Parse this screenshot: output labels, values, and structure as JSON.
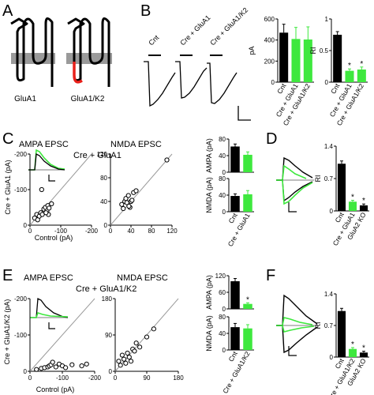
{
  "panels": {
    "A": "A",
    "B": "B",
    "C": "C",
    "D": "D",
    "E": "E",
    "F": "F"
  },
  "panelA": {
    "glua1_label": "GluA1",
    "glua1k2_label": "GluA1/K2"
  },
  "panelB": {
    "trace_labels": [
      "Cnt",
      "Cre + GluA1",
      "Cre + GluA1/K2"
    ],
    "pA_axis": "pA",
    "RI_axis": "RI"
  },
  "panelC": {
    "ampa_title": "AMPA EPSC",
    "nmda_title": "NMDA EPSC",
    "condition": "Cre + GluA1",
    "y_axis_label": "Cre + GluA1 (pA)",
    "x_axis_label": "Control (pA)",
    "ampa_bar_axis": "AMPA (pA)",
    "nmda_bar_axis": "NMDA (pA)"
  },
  "panelD": {
    "RI_axis": "RI"
  },
  "panelE": {
    "ampa_title": "AMPA EPSC",
    "nmda_title": "NMDA EPSC",
    "condition": "Cre + GluA1/K2",
    "y_axis_label": "Cre + GluA1/K2 (pA)",
    "x_axis_label": "Control (pA)",
    "ampa_bar_axis": "AMPA (pA)",
    "nmda_bar_axis": "NMDA (pA)"
  },
  "panelF": {
    "RI_axis": "RI"
  },
  "colors": {
    "control": "#000000",
    "green": "#3ee83e",
    "red": "#e8201a",
    "membrane": "#9a9a9a"
  },
  "chart_data": [
    {
      "id": "B-pA",
      "type": "bar",
      "categories": [
        "Cnt",
        "Cre + GluA1",
        "Cre + GluA1/K2"
      ],
      "values": [
        470,
        410,
        405
      ],
      "errors": [
        80,
        110,
        120
      ],
      "ylabel": "pA",
      "ylim": [
        0,
        600
      ],
      "yticks": [
        "0",
        "200",
        "400",
        "600"
      ],
      "colors": [
        "#000000",
        "#3ee83e",
        "#3ee83e"
      ]
    },
    {
      "id": "B-RI",
      "type": "bar",
      "categories": [
        "Cnt",
        "Cre + GluA1",
        "Cre + GluA1/K2"
      ],
      "values": [
        0.75,
        0.18,
        0.2
      ],
      "errors": [
        0.05,
        0.03,
        0.04
      ],
      "ylabel": "RI",
      "ylim": [
        0,
        1
      ],
      "yticks": [
        "0",
        "0.5",
        "1"
      ],
      "colors": [
        "#000000",
        "#3ee83e",
        "#3ee83e"
      ]
    },
    {
      "id": "C-AMPA-scatter",
      "type": "scatter",
      "title": "AMPA EPSC",
      "xlabel": "Control (pA)",
      "ylabel": "Cre + GluA1 (pA)",
      "xticks": [
        "0",
        "-100",
        "-200"
      ],
      "yticks": [
        "0",
        "-100",
        "-200"
      ],
      "x": [
        -15,
        -22,
        -30,
        -35,
        -40,
        -45,
        -50,
        -55,
        -58,
        -60,
        -62,
        -70,
        -38,
        -25,
        -52
      ],
      "y": [
        -20,
        -30,
        -25,
        -35,
        -30,
        -45,
        -50,
        -40,
        -55,
        -30,
        -48,
        -60,
        -100,
        -15,
        -35
      ]
    },
    {
      "id": "C-NMDA-scatter",
      "type": "scatter",
      "title": "NMDA EPSC",
      "xticks": [
        "0",
        "40",
        "80",
        "120"
      ],
      "yticks": [
        "0",
        "40",
        "80",
        "120"
      ],
      "x": [
        22,
        25,
        28,
        30,
        32,
        35,
        38,
        40,
        42,
        45,
        50,
        36,
        110
      ],
      "y": [
        35,
        28,
        40,
        45,
        38,
        50,
        30,
        40,
        42,
        55,
        58,
        32,
        110
      ]
    },
    {
      "id": "C-AMPA-bar",
      "type": "bar",
      "categories": [
        "Cnt",
        "Cre + GluA1"
      ],
      "values": [
        62,
        42
      ],
      "errors": [
        6,
        7
      ],
      "ylabel": "AMPA (pA)",
      "yticks": [
        "0",
        "40",
        "80"
      ],
      "colors": [
        "#000000",
        "#3ee83e"
      ]
    },
    {
      "id": "C-NMDA-bar",
      "type": "bar",
      "categories": [
        "Cnt",
        "Cre + GluA1"
      ],
      "values": [
        38,
        42
      ],
      "errors": [
        5,
        9
      ],
      "ylabel": "NMDA (pA)",
      "yticks": [
        "0",
        "40",
        "80"
      ],
      "colors": [
        "#000000",
        "#3ee83e"
      ]
    },
    {
      "id": "D-RI",
      "type": "bar",
      "categories": [
        "Cnt",
        "Cre + GluA1",
        "GluA2 KO"
      ],
      "values": [
        1.02,
        0.2,
        0.12
      ],
      "errors": [
        0.06,
        0.03,
        0.03
      ],
      "ylabel": "RI",
      "yticks": [
        "0",
        "0.7",
        "1.4"
      ],
      "colors": [
        "#000000",
        "#3ee83e",
        "#000000"
      ]
    },
    {
      "id": "E-AMPA-scatter",
      "type": "scatter",
      "title": "AMPA EPSC",
      "xlabel": "Control (pA)",
      "ylabel": "Cre + GluA1/K2 (pA)",
      "xticks": [
        "0",
        "-100",
        "-200"
      ],
      "yticks": [
        "0",
        "-100",
        "-200"
      ],
      "x": [
        -20,
        -35,
        -45,
        -55,
        -60,
        -65,
        -80,
        -90,
        -100,
        -110,
        -130,
        -160,
        -175,
        -70
      ],
      "y": [
        -5,
        -8,
        -10,
        -12,
        -15,
        -18,
        -12,
        -20,
        -15,
        -10,
        -18,
        -15,
        -20,
        -25
      ]
    },
    {
      "id": "E-NMDA-scatter",
      "type": "scatter",
      "title": "NMDA EPSC",
      "xticks": [
        "0",
        "90",
        "180"
      ],
      "yticks": [
        "0",
        "90",
        "180"
      ],
      "x": [
        10,
        15,
        20,
        25,
        30,
        35,
        40,
        50,
        55,
        60,
        70,
        90,
        110,
        45
      ],
      "y": [
        25,
        15,
        40,
        30,
        20,
        45,
        35,
        55,
        50,
        70,
        60,
        85,
        105,
        25
      ]
    },
    {
      "id": "E-AMPA-bar",
      "type": "bar",
      "categories": [
        "Cnt",
        "Cre + GluA1/K2"
      ],
      "values": [
        100,
        18
      ],
      "errors": [
        10,
        4
      ],
      "ylabel": "AMPA (pA)",
      "yticks": [
        "0",
        "60",
        "120"
      ],
      "colors": [
        "#000000",
        "#3ee83e"
      ]
    },
    {
      "id": "E-NMDA-bar",
      "type": "bar",
      "categories": [
        "Cnt",
        "Cre + GluA1/K2"
      ],
      "values": [
        55,
        52
      ],
      "errors": [
        9,
        9
      ],
      "ylabel": "NMDA (pA)",
      "yticks": [
        "0",
        "40",
        "80"
      ],
      "colors": [
        "#000000",
        "#3ee83e"
      ]
    },
    {
      "id": "F-RI",
      "type": "bar",
      "categories": [
        "Cnt",
        "Cre + GluA1/K2",
        "GluA2 KO"
      ],
      "values": [
        1.02,
        0.18,
        0.1
      ],
      "errors": [
        0.06,
        0.03,
        0.03
      ],
      "ylabel": "RI",
      "yticks": [
        "0",
        "0.7",
        "1.4"
      ],
      "colors": [
        "#000000",
        "#3ee83e",
        "#000000"
      ]
    }
  ]
}
